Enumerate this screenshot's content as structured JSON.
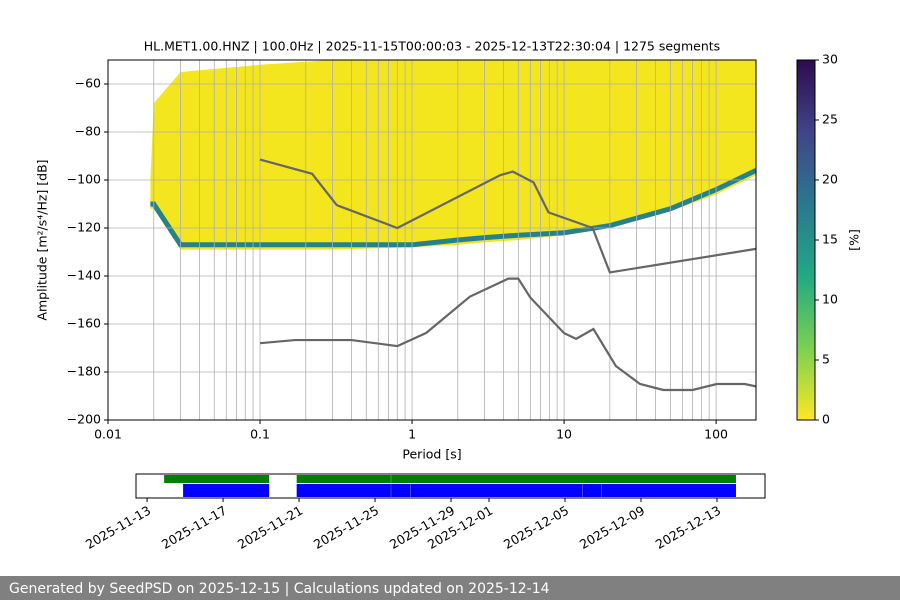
{
  "chart_data": [
    {
      "type": "psd",
      "title": "HL.MET1.00.HNZ | 100.0Hz | 2025-11-15T00:00:03 - 2025-12-13T22:30:04 | 1275 segments",
      "xlabel": "Period [s]",
      "ylabel": "Amplitude [m²/s⁴/Hz] [dB]",
      "xscale": "log",
      "xlim": [
        0.01,
        183
      ],
      "ylim": [
        -200,
        -50
      ],
      "xticks": [
        {
          "value": 0.01,
          "label": "0.01"
        },
        {
          "value": 0.1,
          "label": "0.1"
        },
        1,
        10,
        100
      ],
      "xminorticks": [
        0.02,
        0.03,
        0.04,
        0.05,
        0.06,
        0.07,
        0.08,
        0.09,
        0.2,
        0.3,
        0.4,
        0.5,
        0.6,
        0.7,
        0.8,
        0.9,
        2,
        3,
        4,
        5,
        6,
        7,
        8,
        9,
        20,
        30,
        40,
        50,
        60,
        70,
        80,
        90
      ],
      "yticks": [
        {
          "value": -200,
          "label": "−200"
        },
        {
          "value": -180,
          "label": "−180"
        },
        {
          "value": -160,
          "label": "−160"
        },
        {
          "value": -140,
          "label": "−140"
        },
        {
          "value": -120,
          "label": "−120"
        },
        {
          "value": -100,
          "label": "−100"
        },
        {
          "value": -80,
          "label": "−80"
        },
        {
          "value": -60,
          "label": "−60"
        }
      ],
      "grid": true,
      "density": {
        "color": "#f4e61e",
        "mode_color": "#26818e",
        "x": [
          0.019,
          0.02,
          0.03,
          0.1,
          0.3,
          1,
          2,
          3,
          5,
          10,
          20,
          50,
          100,
          183
        ],
        "upper": [
          -100,
          -68,
          -55,
          -52,
          -50,
          -50,
          -50,
          -50,
          -50,
          -50,
          -50,
          -50,
          -50,
          -50
        ],
        "lower": [
          -112,
          -112,
          -129,
          -129,
          -129,
          -128,
          -127,
          -126,
          -125,
          -123,
          -120,
          -113,
          -106,
          -98
        ],
        "mode": [
          -110,
          -110,
          -127,
          -127,
          -127,
          -127,
          -125,
          -124,
          -123,
          -122,
          -119,
          -112,
          -104,
          -96
        ]
      },
      "series": [
        {
          "color": "#666666",
          "x": [
            0.1,
            0.22,
            0.32,
            0.8,
            3.8,
            4.6,
            6.3,
            7.9,
            15.4,
            20,
            183
          ],
          "values": [
            -91.5,
            -97.4,
            -110.5,
            -120,
            -98,
            -96.5,
            -101,
            -113.5,
            -120,
            -138.5,
            -128.7
          ]
        },
        {
          "color": "#666666",
          "x": [
            0.1,
            0.17,
            0.4,
            0.8,
            1.24,
            2.4,
            4.3,
            5,
            6,
            10,
            12,
            15.6,
            21.9,
            31.6,
            45,
            70,
            101,
            154,
            183
          ],
          "values": [
            -168,
            -166.7,
            -166.7,
            -169.2,
            -163.7,
            -148.6,
            -141.1,
            -141.1,
            -149,
            -163.8,
            -166.2,
            -162.1,
            -177.5,
            -185,
            -187.5,
            -187.5,
            -185,
            -185,
            -186
          ]
        }
      ],
      "colorbar": {
        "clim": [
          0,
          30
        ],
        "ticks": [
          0,
          5,
          10,
          15,
          20,
          25,
          30
        ],
        "label": "[%]",
        "cmap": [
          "#fde725",
          "#7ad151",
          "#22a884",
          "#2a788e",
          "#414487",
          "#2d0c4e"
        ]
      }
    },
    {
      "type": "timeline",
      "xlim": [
        "2025-11-12T10:00",
        "2025-12-15T12:40"
      ],
      "xticks": [
        "2025-11-13",
        "2025-11-17",
        "2025-11-21",
        "2025-11-25",
        "2025-11-29",
        "2025-12-01",
        "2025-12-05",
        "2025-12-09",
        "2025-12-13"
      ],
      "series": [
        {
          "color": "#008000",
          "segments": [
            [
              "2025-11-13T21:30",
              "2025-11-19T10:10"
            ],
            [
              "2025-11-20T21:00",
              "2025-11-25T20:00"
            ],
            [
              "2025-11-25T20:20",
              "2025-12-14T00:00"
            ]
          ]
        },
        {
          "color": "#0000ff",
          "segments": [
            [
              "2025-11-14T21:30",
              "2025-11-19T10:10"
            ],
            [
              "2025-11-20T21:00",
              "2025-11-25T20:00"
            ],
            [
              "2025-11-25T20:20",
              "2025-11-26T20:50"
            ],
            [
              "2025-11-26T21:10",
              "2025-12-05T21:50"
            ],
            [
              "2025-12-05T22:10",
              "2025-12-06T21:50"
            ],
            [
              "2025-12-06T22:10",
              "2025-12-14T00:00"
            ]
          ]
        }
      ]
    }
  ],
  "footer": "Generated by SeedPSD on 2025-12-15 | Calculations updated on 2025-12-14"
}
